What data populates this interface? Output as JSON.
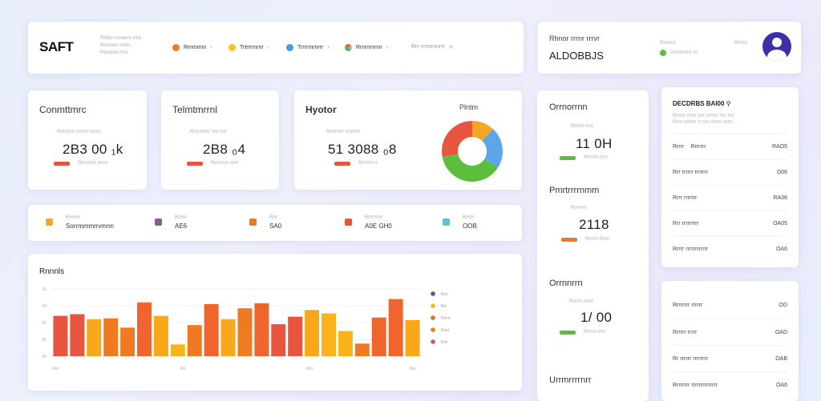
{
  "header": {
    "logo": "SAFT",
    "sub1": "Rhbor roroerrv rrtrs",
    "sub2": "Rotnnnn mrtrs",
    "sub3": "Pqnnom rrtrs",
    "nav": [
      {
        "label": "Rmmmm",
        "icon": "pie-icon",
        "color": "#f07a22"
      },
      {
        "label": "Trtrrrmrnr",
        "icon": "bulb-icon",
        "color": "#f5c518"
      },
      {
        "label": "Trrrrmrnrrr",
        "icon": "globe-icon",
        "color": "#3aa0e0"
      },
      {
        "label": "Rmrrrnrrnr",
        "icon": "colorwheel-icon",
        "color": "#e0445a"
      },
      {
        "label": "Rrr rrrnrrnnrrr",
        "icon": "dot-icon",
        "color": "#bbbbbb"
      }
    ]
  },
  "user": {
    "title": "Rhnor rrrnr rrrvr",
    "value": "ALDOBBJS",
    "status1": "Rrnrrrrr",
    "status2": "Grnrrnnrrr rrr",
    "extra": "Rrrrrrr"
  },
  "kpis": [
    {
      "title": "Conmttmrc",
      "sub": "Rnrrnrnr rrnrrrr rrrrrrr",
      "value": "2B3 00 ₁k",
      "foot": "Rtrrrnnrr nrrrrr",
      "bar": "#e8553e"
    },
    {
      "title": "Telmtmrrnl",
      "sub": "Rnrrrrnrrr rrnr rrrr",
      "value": "2B8 ₀4",
      "foot": "Rrrrrrnrr rnrrr",
      "bar": "#e8553e"
    },
    {
      "title": "Hyotor",
      "sub": "Rrrrrrnrr rrnrrrrrr",
      "value": "51 3088 ₀8",
      "foot": "Rrrrrrrr rr",
      "bar": "#e8553e",
      "tag": "Plntm"
    }
  ],
  "strip": [
    {
      "label": "Rrnrrrr",
      "value": "Sorrmmmrrvmnn",
      "color": "#f5a623"
    },
    {
      "label": "Rrrrrr",
      "value": "AE6",
      "color": "#8a5a9a"
    },
    {
      "label": "Rrrr",
      "value": "SA0",
      "color": "#f07a22"
    },
    {
      "label": "Rrrrrrrrrr",
      "value": "A0E GH0",
      "color": "#e8553e"
    },
    {
      "label": "Rrrrrr",
      "value": "OOB",
      "color": "#5bc0d8"
    }
  ],
  "chart_data": {
    "type": "bar",
    "title": "Rnnnls",
    "values": [
      48,
      50,
      44,
      45,
      34,
      64,
      48,
      14,
      37,
      62,
      44,
      57,
      63,
      38,
      47,
      55,
      51,
      30,
      15,
      46,
      68,
      43
    ],
    "colors": [
      "#e8553e",
      "#e8553e",
      "#f8a81a",
      "#f07a22",
      "#f07a22",
      "#f0652e",
      "#f8a81a",
      "#f8b41a",
      "#f07a22",
      "#f0652e",
      "#f8a81a",
      "#f07a22",
      "#f0652e",
      "#e8553e",
      "#e8553e",
      "#f8a81a",
      "#f8b41a",
      "#f8b41a",
      "#f07a22",
      "#f0652e",
      "#f0652e",
      "#f8a81a"
    ],
    "ylim": [
      0,
      80
    ],
    "ytick_labels": [
      "Rr",
      "Rr",
      "Rr",
      "Rr",
      "Rr"
    ],
    "xtick_labels": [
      "Rrrr",
      "Rrr",
      "Rrrr",
      "Rrrr"
    ],
    "legend": [
      {
        "name": "Rrrr",
        "color": "#7b3fa0"
      },
      {
        "name": "Rrr",
        "color": "#f8b41a"
      },
      {
        "name": "Rrrrrr",
        "color": "#f0652e"
      },
      {
        "name": "Rrrrr",
        "color": "#f07a22"
      },
      {
        "name": "Rrrr",
        "color": "#e8553e"
      }
    ]
  },
  "donut": [
    {
      "value": 12,
      "color": "#f5a623"
    },
    {
      "value": 22,
      "color": "#5aa6e8"
    },
    {
      "value": 38,
      "color": "#5bbf3c"
    },
    {
      "value": 28,
      "color": "#e8553e"
    }
  ],
  "mid": [
    {
      "title": "Orrnorrnn",
      "sub": "Rrrrrrr rrrrr",
      "value": "11 0H",
      "foot": "Rrrrrrrr rrrrr",
      "bar": "#5bbf3c"
    },
    {
      "title": "Pmrtrrrrnmm",
      "sub": "Rrrrrrrrr",
      "value": "2118",
      "foot": "Rrrrrrr Rrrrr",
      "bar": "#f07a22"
    },
    {
      "title": "Orrnnrrn",
      "sub": "Rrrrrrr rrrrrr",
      "value": "1/ 00",
      "foot": "Rrrrrrr rrrrr",
      "bar": "#5bbf3c"
    },
    {
      "title": "Urrmrrrrnrr"
    }
  ],
  "table1": {
    "title": "DECDRBS BAI00 ⚲",
    "subs": [
      "Rrrrrrr rrrrrr rrrr rrrrrrrr rrrr rrrr",
      "Rrrrr rrrrrrrr rr rrrr rrrrrrr rrrrrr"
    ],
    "rows": [
      {
        "a": "Rrrrr",
        "b": "Rrrrrrr",
        "v": "RAO5"
      },
      {
        "a": "Rrr rrrrrr rrrrrrr",
        "b": "",
        "v": "D06"
      },
      {
        "a": "Rrrr rrrrrrr",
        "b": "",
        "v": "RA06"
      },
      {
        "a": "Rrr rrrrrrrrr",
        "b": "",
        "v": "OA05"
      },
      {
        "a": "Rrrrr rrrrrrrrrrrr",
        "b": "",
        "v": "OA6"
      }
    ]
  },
  "table2": {
    "rows": [
      {
        "a": "Rrrrrrrr rrrrrr",
        "v": "OD"
      },
      {
        "a": "Rrrrrr rrrrr",
        "v": "OAD"
      },
      {
        "a": "Rr rrrrrr rrrrrrrr",
        "v": "OAB"
      },
      {
        "a": "Rrrrrrrr rrrrrrrrrrrrrr",
        "v": "OA6"
      }
    ]
  }
}
